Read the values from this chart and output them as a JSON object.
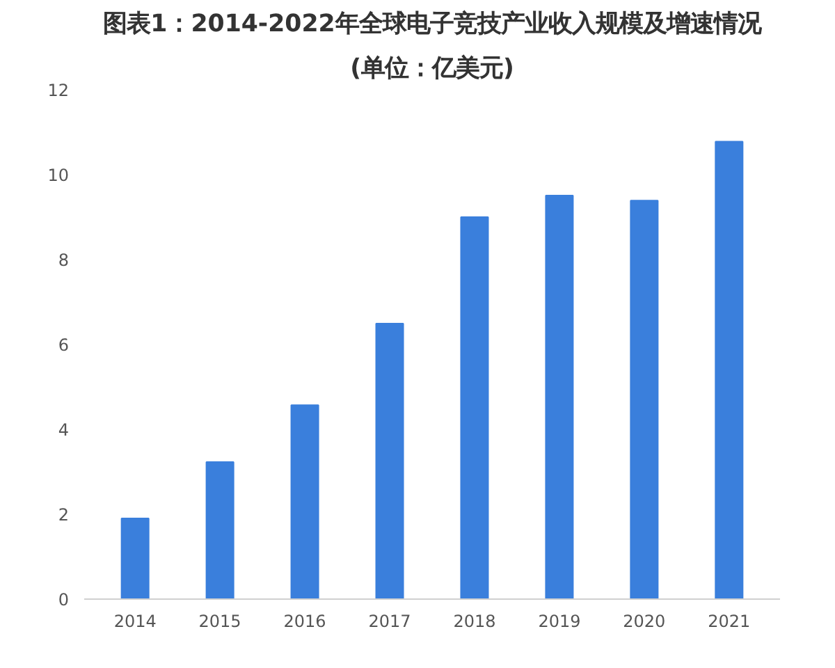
{
  "chart_data": {
    "type": "bar",
    "title": "图表1：2014-2022年全球电子竞技产业收入规模及增速情况",
    "subtitle": "(单位：亿美元)",
    "categories": [
      "2014",
      "2015",
      "2016",
      "2017",
      "2018",
      "2019",
      "2020",
      "2021"
    ],
    "values": [
      1.9,
      3.23,
      4.57,
      6.49,
      9.0,
      9.51,
      9.39,
      10.78
    ],
    "color": "#3a7fdc",
    "ylim": [
      0,
      12
    ],
    "yticks": [
      0,
      2,
      4,
      6,
      8,
      10,
      12
    ],
    "grid": false
  }
}
